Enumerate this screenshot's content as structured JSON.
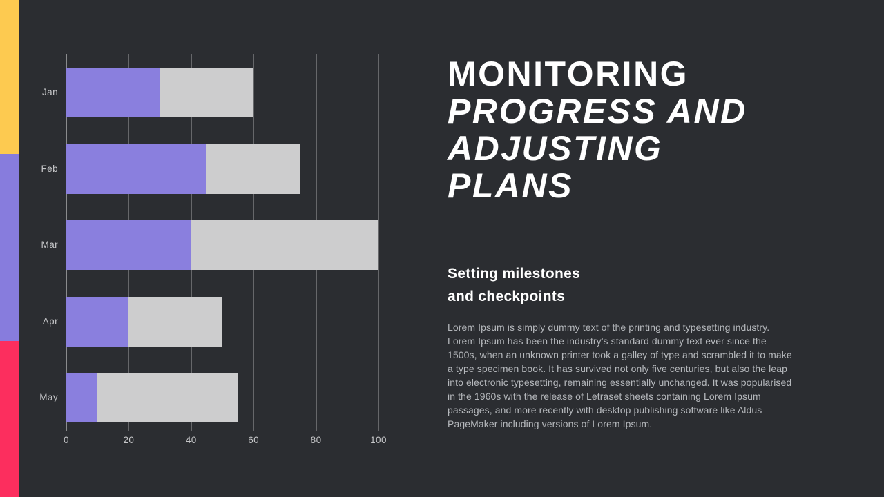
{
  "title": {
    "lines": [
      {
        "text": "MONITORING",
        "italic": false
      },
      {
        "text": "PROGRESS AND",
        "italic": true
      },
      {
        "text": "ADJUSTING",
        "italic": true
      },
      {
        "text": "PLANS",
        "italic": true
      }
    ]
  },
  "subtitle": {
    "lines": [
      "Setting milestones",
      "and checkpoints"
    ]
  },
  "body": {
    "text": "Lorem Ipsum is simply dummy text of the printing and typesetting industry. Lorem Ipsum has been the industry's standard dummy text ever since the 1500s, when an unknown printer took a galley of type and scrambled it to make a type specimen book. It has survived not only five centuries, but also the leap into electronic typesetting, remaining essentially unchanged. It was popularised in the 1960s with the release of Letraset sheets containing Lorem Ipsum passages, and more recently with desktop publishing software like Aldus PageMaker including versions of Lorem Ipsum."
  },
  "chart_data": {
    "type": "bar",
    "orientation": "horizontal",
    "stacked": true,
    "title": "",
    "xlabel": "",
    "ylabel": "",
    "categories": [
      "Jan",
      "Feb",
      "Mar",
      "Apr",
      "May"
    ],
    "series": [
      {
        "name": "series-1",
        "color": "#8a7fde",
        "values": [
          30,
          45,
          40,
          20,
          10
        ]
      },
      {
        "name": "series-2",
        "color": "#cdcdce",
        "values": [
          30,
          30,
          60,
          30,
          45
        ]
      }
    ],
    "totals": [
      60,
      75,
      100,
      50,
      55
    ],
    "x_ticks": [
      0,
      20,
      40,
      60,
      80,
      100
    ],
    "xlim": [
      0,
      100
    ],
    "grid": "vertical",
    "legend": "none"
  },
  "theme": {
    "bg": "#2b2d31",
    "stripe_yellow": "#fdca50",
    "stripe_purple": "#877cdd",
    "stripe_pink": "#fc2e5e",
    "bar_purple": "#8a7fde",
    "bar_gray": "#cdcdce",
    "title_color": "#ffffff",
    "body_color": "#b5b8bc",
    "axis_label_color": "#c6c7c9",
    "gridline_color": "rgba(255,255,255,0.28)",
    "axis_line_color": "rgba(255,255,255,0.45)"
  }
}
